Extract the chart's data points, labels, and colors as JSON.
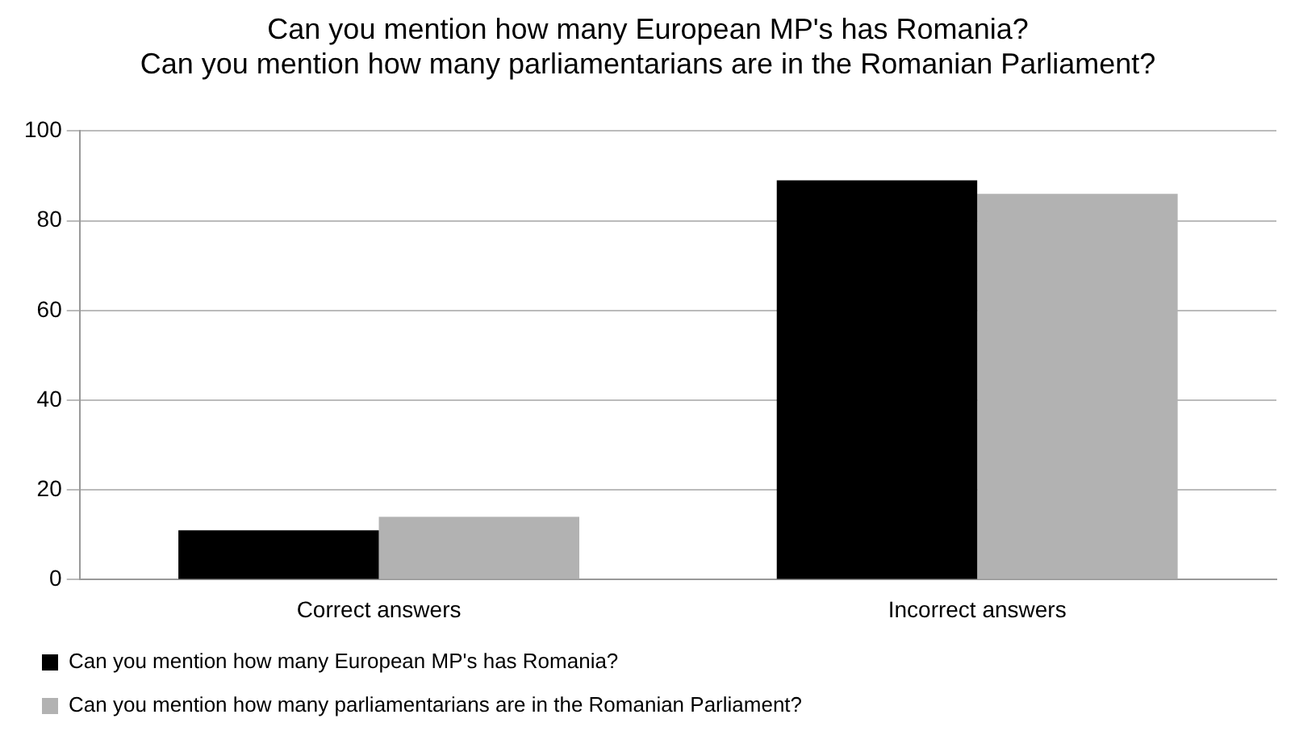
{
  "chart_data": {
    "type": "bar",
    "title": [
      "Can you mention how many European MP's has Romania?",
      "Can you mention how many parliamentarians are in the Romanian Parliament?"
    ],
    "categories": [
      "Correct answers",
      "Incorrect answers"
    ],
    "series": [
      {
        "name": "Can you mention how many European MP's has Romania?",
        "color": "#000000",
        "values": [
          11,
          89
        ]
      },
      {
        "name": "Can you mention how many parliamentarians are in the Romanian Parliament?",
        "color": "#b2b2b2",
        "values": [
          14,
          86
        ]
      }
    ],
    "ylim": [
      0,
      100
    ],
    "yticks": [
      0,
      20,
      40,
      60,
      80,
      100
    ],
    "grid": "y",
    "legend": "bottom left"
  }
}
